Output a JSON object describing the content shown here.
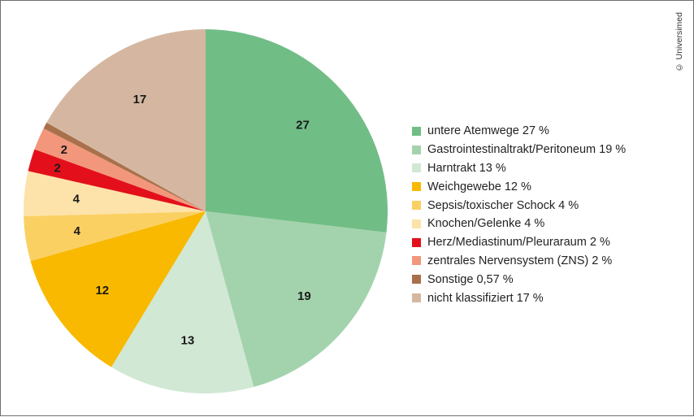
{
  "copyright": "© Universimed",
  "chart_data": {
    "type": "pie",
    "start_angle_deg": 0,
    "direction": "clockwise",
    "slices": [
      {
        "name": "untere Atemwege 27 %",
        "value": 27,
        "label": "27",
        "color": "#71bd86"
      },
      {
        "name": "Gastrointestinaltrakt/Peritoneum 19 %",
        "value": 19,
        "label": "19",
        "color": "#a3d3ad"
      },
      {
        "name": "Harntrakt 13 %",
        "value": 13,
        "label": "13",
        "color": "#d1e8d4"
      },
      {
        "name": "Weichgewebe 12 %",
        "value": 12,
        "label": "12",
        "color": "#f8b900"
      },
      {
        "name": "Sepsis/toxischer Schock 4 %",
        "value": 4,
        "label": "4",
        "color": "#fbd063"
      },
      {
        "name": "Knochen/Gelenke 4 %",
        "value": 4,
        "label": "4",
        "color": "#fde3a9"
      },
      {
        "name": "Herz/Mediastinum/Pleuraraum 2 %",
        "value": 2,
        "label": "2",
        "color": "#e3101b"
      },
      {
        "name": "zentrales Nervensystem (ZNS) 2 %",
        "value": 2,
        "label": "2",
        "color": "#f2977c"
      },
      {
        "name": "Sonstige 0,57 %",
        "value": 0.57,
        "label": "",
        "color": "#a9704c"
      },
      {
        "name": "nicht klassifiziert 17 %",
        "value": 17,
        "label": "17",
        "color": "#d5b7a1"
      }
    ]
  }
}
